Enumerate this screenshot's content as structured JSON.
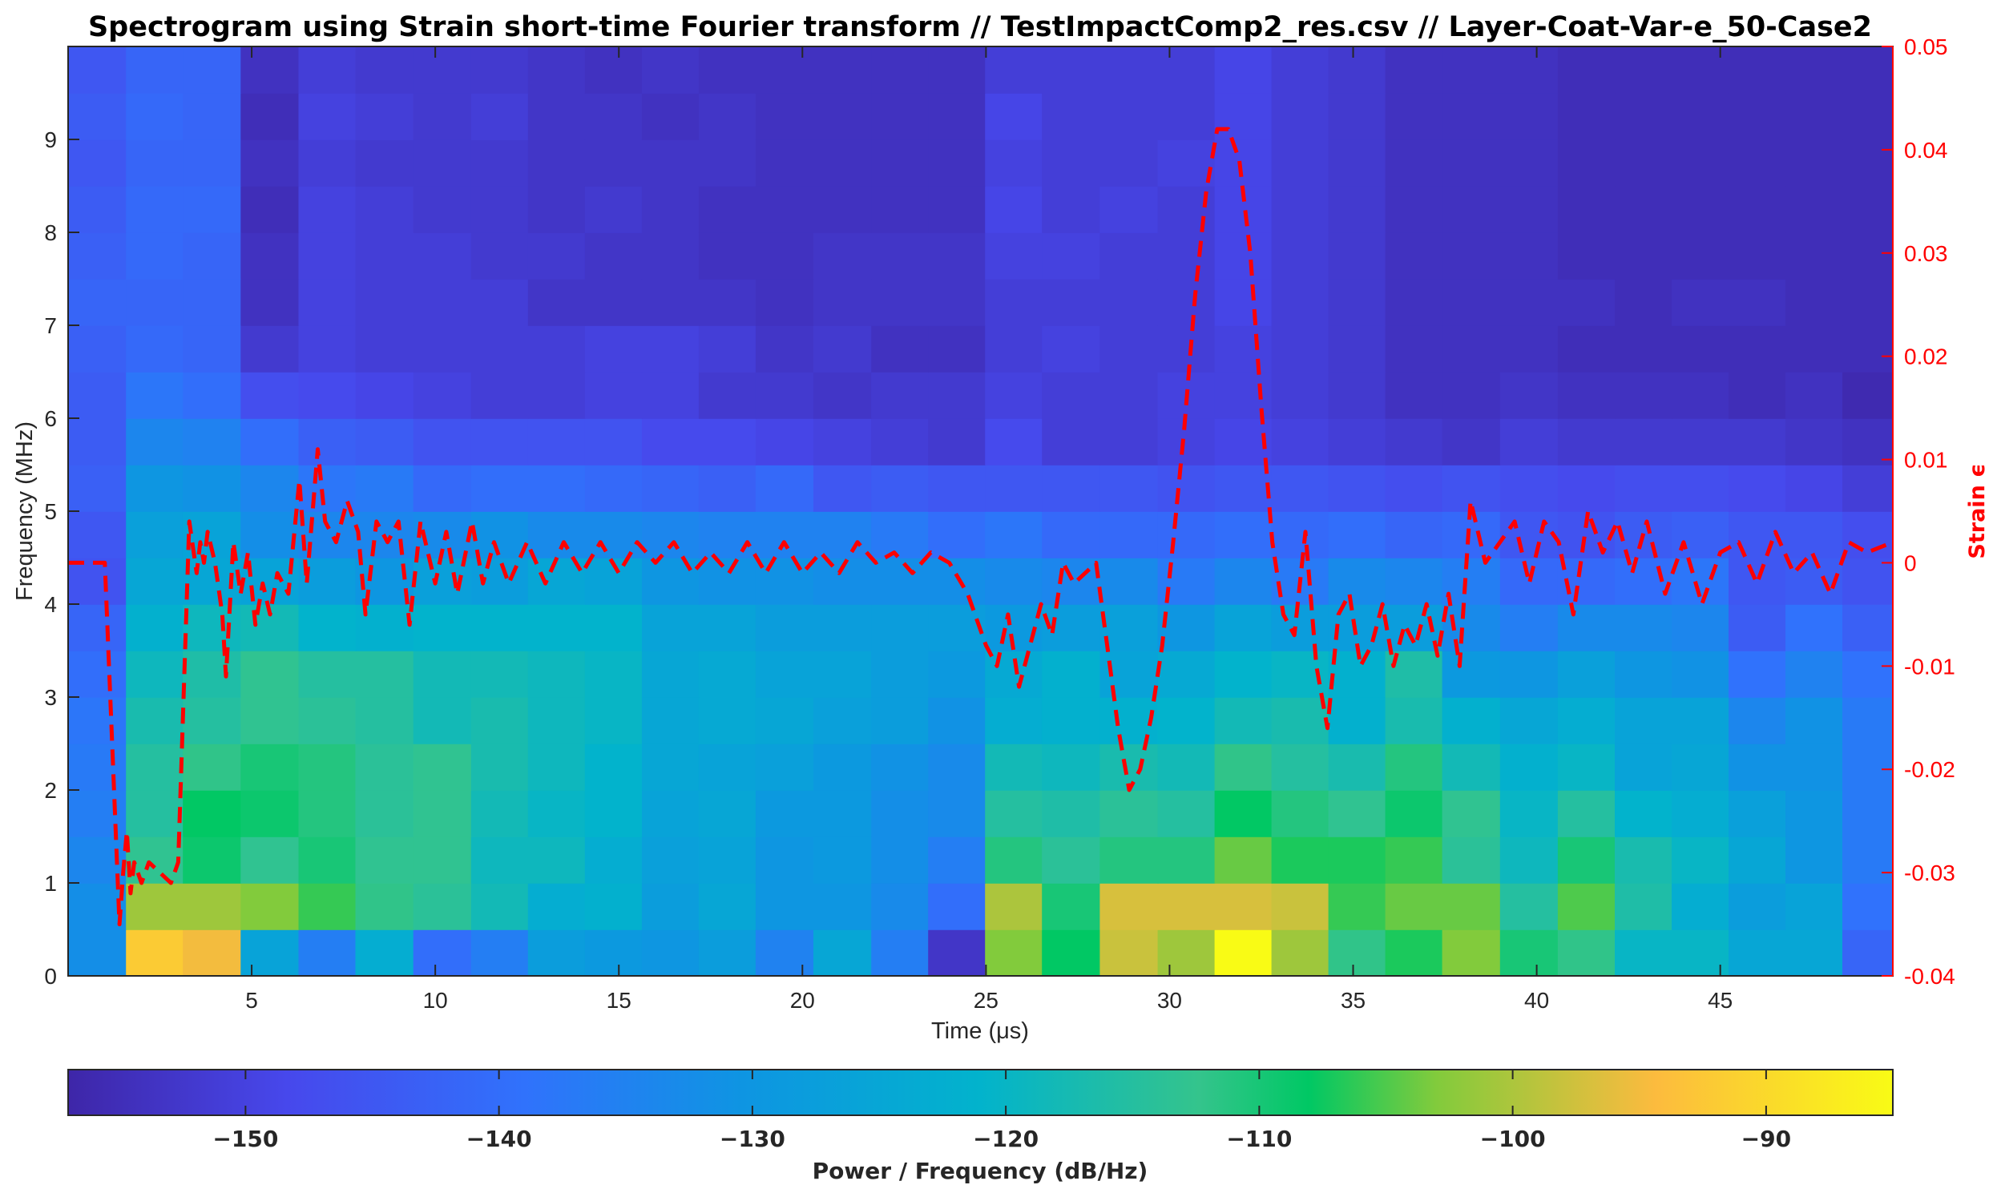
{
  "chart_data": {
    "type": "heatmap",
    "title": "Spectrogram using Strain short-time Fourier transform //  TestImpactComp2_res.csv  // Layer-Coat-Var-e_50-Case2",
    "xlabel": "Time (μs)",
    "ylabel": "Frequency (MHz)",
    "y2label": "Strain ϵ",
    "colorbar_label": "Power / Frequency (dB/Hz)",
    "xlim": [
      0.0,
      49.7
    ],
    "ylim": [
      0,
      10
    ],
    "y2lim": [
      -0.04,
      0.05
    ],
    "clim": [
      -157,
      -85
    ],
    "x_ticks": [
      "5",
      "10",
      "15",
      "20",
      "25",
      "30",
      "35",
      "40",
      "45"
    ],
    "y_ticks": [
      "0",
      "1",
      "2",
      "3",
      "4",
      "5",
      "6",
      "7",
      "8",
      "9"
    ],
    "y2_ticks": [
      "-0.04",
      "-0.03",
      "-0.02",
      "-0.01",
      "0",
      "0.01",
      "0.02",
      "0.03",
      "0.04",
      "0.05"
    ],
    "colorbar_ticks": [
      "-150",
      "-140",
      "-130",
      "-120",
      "-110",
      "-100",
      "-90"
    ],
    "frequency_bins": [
      0.25,
      0.75,
      1.25,
      1.75,
      2.25,
      2.75,
      3.25,
      3.75,
      4.25,
      4.75,
      5.25,
      5.75,
      6.25,
      6.75,
      7.25,
      7.75,
      8.25,
      8.75,
      9.25,
      9.75
    ],
    "time_columns": [
      0.8,
      2.35,
      3.9,
      5.5,
      7.05,
      8.6,
      10.2,
      11.75,
      13.3,
      14.85,
      16.4,
      17.95,
      19.5,
      21.1,
      22.65,
      24.2,
      25.75,
      27.3,
      28.9,
      30.45,
      32.0,
      33.55,
      35.1,
      36.65,
      38.2,
      39.8,
      41.35,
      42.9,
      44.45,
      46.0,
      47.55,
      49.1
    ],
    "power_db": [
      [
        -132,
        -92,
        -95,
        -126,
        -136,
        -123,
        -140,
        -136,
        -128,
        -129,
        -130,
        -128,
        -135,
        -125,
        -136,
        -153,
        -103,
        -108,
        -98,
        -101,
        -85,
        -101,
        -112,
        -107,
        -103,
        -110,
        -112,
        -120,
        -120,
        -125,
        -125,
        -142
      ],
      [
        -132,
        -101,
        -101,
        -103,
        -106,
        -112,
        -114,
        -118,
        -123,
        -122,
        -128,
        -125,
        -130,
        -130,
        -133,
        -140,
        -100,
        -110,
        -97,
        -97,
        -97,
        -98,
        -106,
        -104,
        -104,
        -115,
        -105,
        -116,
        -123,
        -128,
        -126,
        -139
      ],
      [
        -134,
        -113,
        -109,
        -113,
        -110,
        -113,
        -113,
        -119,
        -119,
        -123,
        -127,
        -126,
        -130,
        -129,
        -132,
        -136,
        -111,
        -114,
        -111,
        -111,
        -104,
        -107,
        -107,
        -106,
        -114,
        -119,
        -110,
        -117,
        -120,
        -125,
        -130,
        -137
      ],
      [
        -136,
        -115,
        -108,
        -109,
        -111,
        -114,
        -113,
        -118,
        -120,
        -121,
        -126,
        -125,
        -129,
        -129,
        -132,
        -133,
        -115,
        -116,
        -114,
        -115,
        -108,
        -111,
        -113,
        -109,
        -113,
        -120,
        -115,
        -121,
        -123,
        -127,
        -130,
        -137
      ],
      [
        -137,
        -115,
        -112,
        -110,
        -111,
        -114,
        -113,
        -117,
        -119,
        -121,
        -125,
        -126,
        -127,
        -129,
        -131,
        -133,
        -118,
        -119,
        -117,
        -118,
        -112,
        -115,
        -117,
        -111,
        -118,
        -122,
        -120,
        -126,
        -125,
        -131,
        -131,
        -137
      ],
      [
        -138,
        -117,
        -115,
        -113,
        -114,
        -115,
        -118,
        -117,
        -119,
        -120,
        -125,
        -124,
        -125,
        -127,
        -128,
        -131,
        -123,
        -122,
        -122,
        -121,
        -118,
        -117,
        -122,
        -117,
        -122,
        -125,
        -123,
        -126,
        -126,
        -134,
        -131,
        -137
      ],
      [
        -140,
        -119,
        -116,
        -113,
        -115,
        -115,
        -118,
        -118,
        -119,
        -120,
        -125,
        -124,
        -126,
        -126,
        -128,
        -129,
        -124,
        -122,
        -126,
        -124,
        -121,
        -120,
        -122,
        -116,
        -129,
        -130,
        -127,
        -130,
        -131,
        -139,
        -135,
        -139
      ],
      [
        -142,
        -122,
        -119,
        -118,
        -121,
        -122,
        -121,
        -121,
        -121,
        -121,
        -126,
        -126,
        -128,
        -128,
        -128,
        -128,
        -129,
        -128,
        -127,
        -130,
        -126,
        -128,
        -128,
        -128,
        -133,
        -136,
        -133,
        -133,
        -134,
        -144,
        -139,
        -143
      ],
      [
        -146,
        -125,
        -125,
        -126,
        -128,
        -130,
        -127,
        -128,
        -125,
        -126,
        -130,
        -131,
        -131,
        -132,
        -132,
        -132,
        -133,
        -134,
        -133,
        -137,
        -134,
        -137,
        -133,
        -134,
        -136,
        -141,
        -141,
        -140,
        -138,
        -145,
        -144,
        -146
      ],
      [
        -145,
        -127,
        -126,
        -132,
        -134,
        -134,
        -133,
        -131,
        -133,
        -133,
        -134,
        -135,
        -135,
        -135,
        -137,
        -140,
        -138,
        -141,
        -141,
        -141,
        -140,
        -141,
        -140,
        -142,
        -141,
        -145,
        -146,
        -144,
        -143,
        -145,
        -145,
        -147
      ],
      [
        -143,
        -130,
        -131,
        -134,
        -138,
        -137,
        -141,
        -140,
        -140,
        -141,
        -142,
        -143,
        -141,
        -145,
        -144,
        -145,
        -145,
        -145,
        -145,
        -146,
        -145,
        -145,
        -146,
        -147,
        -146,
        -147,
        -148,
        -147,
        -147,
        -148,
        -149,
        -151
      ],
      [
        -144,
        -134,
        -135,
        -140,
        -143,
        -144,
        -146,
        -146,
        -146,
        -146,
        -148,
        -148,
        -149,
        -150,
        -151,
        -152,
        -148,
        -151,
        -151,
        -150,
        -149,
        -150,
        -151,
        -152,
        -153,
        -151,
        -152,
        -152,
        -152,
        -152,
        -153,
        -154
      ],
      [
        -144,
        -138,
        -140,
        -147,
        -148,
        -149,
        -150,
        -151,
        -151,
        -150,
        -150,
        -152,
        -152,
        -153,
        -152,
        -152,
        -150,
        -151,
        -151,
        -150,
        -150,
        -151,
        -152,
        -154,
        -154,
        -153,
        -154,
        -154,
        -154,
        -155,
        -154,
        -156
      ],
      [
        -143,
        -141,
        -142,
        -152,
        -150,
        -151,
        -151,
        -151,
        -151,
        -150,
        -150,
        -151,
        -153,
        -152,
        -154,
        -154,
        -151,
        -150,
        -151,
        -151,
        -150,
        -151,
        -152,
        -154,
        -154,
        -154,
        -155,
        -155,
        -155,
        -155,
        -155,
        -155
      ],
      [
        -142,
        -142,
        -142,
        -154,
        -150,
        -151,
        -151,
        -151,
        -153,
        -153,
        -153,
        -153,
        -154,
        -153,
        -153,
        -153,
        -151,
        -151,
        -151,
        -151,
        -149,
        -151,
        -152,
        -154,
        -154,
        -154,
        -154,
        -155,
        -154,
        -154,
        -155,
        -155
      ],
      [
        -143,
        -141,
        -142,
        -154,
        -150,
        -151,
        -151,
        -152,
        -152,
        -153,
        -153,
        -154,
        -154,
        -153,
        -153,
        -153,
        -150,
        -150,
        -151,
        -151,
        -149,
        -151,
        -152,
        -154,
        -154,
        -154,
        -155,
        -155,
        -155,
        -155,
        -155,
        -155
      ],
      [
        -144,
        -141,
        -141,
        -155,
        -150,
        -151,
        -152,
        -152,
        -153,
        -152,
        -153,
        -154,
        -154,
        -154,
        -154,
        -154,
        -149,
        -151,
        -150,
        -151,
        -149,
        -151,
        -152,
        -154,
        -154,
        -154,
        -155,
        -155,
        -155,
        -155,
        -155,
        -155
      ],
      [
        -145,
        -142,
        -142,
        -154,
        -151,
        -152,
        -152,
        -152,
        -153,
        -153,
        -153,
        -153,
        -154,
        -154,
        -154,
        -154,
        -150,
        -151,
        -151,
        -150,
        -149,
        -151,
        -152,
        -154,
        -154,
        -154,
        -155,
        -155,
        -155,
        -155,
        -155,
        -155
      ],
      [
        -144,
        -141,
        -142,
        -155,
        -150,
        -151,
        -152,
        -151,
        -153,
        -153,
        -154,
        -153,
        -154,
        -154,
        -154,
        -154,
        -149,
        -151,
        -151,
        -151,
        -149,
        -151,
        -152,
        -154,
        -154,
        -154,
        -155,
        -155,
        -155,
        -155,
        -155,
        -155
      ],
      [
        -145,
        -142,
        -142,
        -154,
        -151,
        -152,
        -152,
        -152,
        -153,
        -154,
        -153,
        -154,
        -154,
        -154,
        -154,
        -154,
        -151,
        -151,
        -151,
        -151,
        -149,
        -151,
        -152,
        -154,
        -154,
        -154,
        -155,
        -155,
        -155,
        -155,
        -155,
        -155
      ]
    ],
    "strain_series": {
      "name": "Strain",
      "color": "#ff0000",
      "x": [
        0.0,
        1.0,
        1.4,
        1.5,
        1.6,
        1.7,
        1.8,
        2.0,
        2.2,
        2.5,
        2.8,
        3.0,
        3.3,
        3.5,
        3.6,
        3.7,
        3.8,
        4.0,
        4.2,
        4.3,
        4.5,
        4.7,
        4.9,
        5.1,
        5.3,
        5.5,
        5.7,
        6.0,
        6.3,
        6.5,
        6.8,
        7.0,
        7.3,
        7.6,
        7.9,
        8.1,
        8.4,
        8.7,
        9.0,
        9.3,
        9.6,
        10.0,
        10.3,
        10.6,
        11.0,
        11.3,
        11.6,
        12.0,
        12.5,
        13.0,
        13.5,
        14.0,
        14.5,
        15.0,
        15.5,
        16.0,
        16.5,
        17.0,
        17.5,
        18.0,
        18.5,
        19.0,
        19.5,
        20.0,
        20.5,
        21.0,
        21.5,
        22.0,
        22.5,
        23.0,
        23.5,
        24.0,
        24.5,
        25.0,
        25.3,
        25.6,
        25.9,
        26.2,
        26.5,
        26.8,
        27.1,
        27.4,
        27.7,
        28.0,
        28.3,
        28.6,
        28.9,
        29.2,
        29.5,
        29.8,
        30.1,
        30.4,
        30.7,
        31.0,
        31.3,
        31.6,
        31.9,
        32.2,
        32.5,
        32.8,
        33.1,
        33.4,
        33.7,
        34.0,
        34.3,
        34.6,
        34.9,
        35.2,
        35.5,
        35.8,
        36.1,
        36.4,
        36.7,
        37.0,
        37.3,
        37.6,
        37.9,
        38.2,
        38.6,
        39.0,
        39.4,
        39.8,
        40.2,
        40.6,
        41.0,
        41.4,
        41.8,
        42.2,
        42.6,
        43.0,
        43.5,
        44.0,
        44.5,
        45.0,
        45.5,
        46.0,
        46.5,
        47.0,
        47.5,
        48.0,
        48.5,
        49.0,
        49.7
      ],
      "y": [
        0.0,
        0.0,
        -0.035,
        -0.03,
        -0.026,
        -0.032,
        -0.029,
        -0.031,
        -0.029,
        -0.03,
        -0.031,
        -0.029,
        0.004,
        -0.001,
        0.002,
        0.0,
        0.003,
        0.0,
        -0.005,
        -0.011,
        0.002,
        -0.003,
        0.001,
        -0.006,
        -0.002,
        -0.005,
        -0.001,
        -0.003,
        0.008,
        -0.002,
        0.011,
        0.004,
        0.002,
        0.006,
        0.003,
        -0.005,
        0.004,
        0.002,
        0.004,
        -0.006,
        0.004,
        -0.002,
        0.003,
        -0.003,
        0.004,
        -0.002,
        0.002,
        -0.002,
        0.002,
        -0.002,
        0.002,
        -0.001,
        0.002,
        -0.001,
        0.002,
        0.0,
        0.002,
        -0.001,
        0.001,
        -0.001,
        0.002,
        -0.001,
        0.002,
        -0.001,
        0.001,
        -0.001,
        0.002,
        0.0,
        0.001,
        -0.001,
        0.001,
        0.0,
        -0.003,
        -0.008,
        -0.01,
        -0.005,
        -0.012,
        -0.008,
        -0.004,
        -0.007,
        0.0,
        -0.002,
        -0.001,
        0.0,
        -0.008,
        -0.016,
        -0.022,
        -0.02,
        -0.015,
        -0.008,
        0.002,
        0.013,
        0.026,
        0.036,
        0.042,
        0.042,
        0.039,
        0.03,
        0.015,
        0.002,
        -0.005,
        -0.007,
        0.003,
        -0.01,
        -0.016,
        -0.005,
        -0.003,
        -0.01,
        -0.008,
        -0.004,
        -0.01,
        -0.006,
        -0.008,
        -0.004,
        -0.009,
        -0.003,
        -0.01,
        0.006,
        0.0,
        0.002,
        0.004,
        -0.002,
        0.004,
        0.002,
        -0.005,
        0.005,
        0.001,
        0.004,
        -0.001,
        0.004,
        -0.003,
        0.002,
        -0.004,
        0.001,
        0.002,
        -0.002,
        0.003,
        -0.001,
        0.001,
        -0.003,
        0.002,
        0.001,
        0.002
      ]
    }
  }
}
